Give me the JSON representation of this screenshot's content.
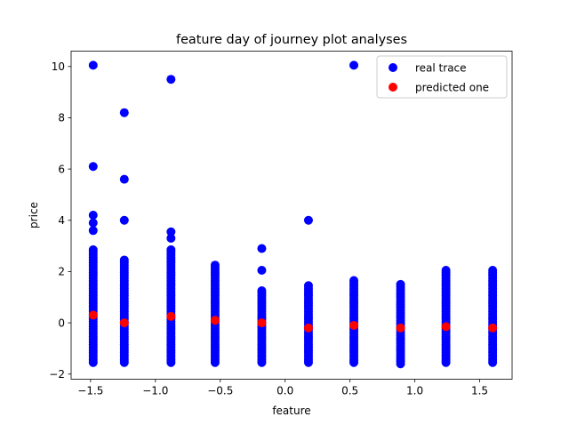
{
  "chart_data": {
    "type": "scatter",
    "title": "feature day of journey plot analyses",
    "xlabel": "feature",
    "ylabel": "price",
    "xlim": [
      -1.65,
      1.75
    ],
    "ylim": [
      -2.2,
      10.6
    ],
    "xticks": [
      -1.5,
      -1.0,
      -0.5,
      0.0,
      0.5,
      1.0,
      1.5
    ],
    "xtick_labels": [
      "−1.5",
      "−1.0",
      "−0.5",
      "0.0",
      "0.5",
      "1.0",
      "1.5"
    ],
    "yticks": [
      -2,
      0,
      2,
      4,
      6,
      8,
      10
    ],
    "ytick_labels": [
      "−2",
      "0",
      "2",
      "4",
      "6",
      "8",
      "10"
    ],
    "grid": false,
    "legend": {
      "placement": "upper right",
      "entries": [
        {
          "name": "real trace",
          "color": "#0000ff"
        },
        {
          "name": "predicted one",
          "color": "#ff0000"
        }
      ]
    },
    "series": [
      {
        "name": "real trace",
        "color": "#0000ff",
        "columns": [
          {
            "x": -1.48,
            "y_min": -1.55,
            "y_max": 2.9,
            "outliers": [
              3.6,
              3.9,
              4.2,
              6.1,
              10.05
            ]
          },
          {
            "x": -1.24,
            "y_min": -1.55,
            "y_max": 2.5,
            "outliers": [
              4.0,
              5.6,
              8.2
            ]
          },
          {
            "x": -0.88,
            "y_min": -1.55,
            "y_max": 2.9,
            "outliers": [
              3.3,
              3.55,
              9.5
            ]
          },
          {
            "x": -0.54,
            "y_min": -1.55,
            "y_max": 2.3,
            "outliers": []
          },
          {
            "x": -0.18,
            "y_min": -1.55,
            "y_max": 1.3,
            "outliers": [
              2.05,
              2.9
            ]
          },
          {
            "x": 0.18,
            "y_min": -1.55,
            "y_max": 1.5,
            "outliers": [
              4.0
            ]
          },
          {
            "x": 0.53,
            "y_min": -1.55,
            "y_max": 1.65,
            "outliers": [
              10.05
            ]
          },
          {
            "x": 0.89,
            "y_min": -1.6,
            "y_max": 1.55,
            "outliers": []
          },
          {
            "x": 1.24,
            "y_min": -1.55,
            "y_max": 2.05,
            "outliers": []
          },
          {
            "x": 1.6,
            "y_min": -1.55,
            "y_max": 2.05,
            "outliers": []
          }
        ]
      },
      {
        "name": "predicted one",
        "color": "#ff0000",
        "points": [
          {
            "x": -1.48,
            "y": 0.3
          },
          {
            "x": -1.24,
            "y": 0.0
          },
          {
            "x": -0.88,
            "y": 0.25
          },
          {
            "x": -0.54,
            "y": 0.1
          },
          {
            "x": -0.18,
            "y": 0.0
          },
          {
            "x": 0.18,
            "y": -0.2
          },
          {
            "x": 0.53,
            "y": -0.1
          },
          {
            "x": 0.89,
            "y": -0.2
          },
          {
            "x": 1.24,
            "y": -0.15
          },
          {
            "x": 1.6,
            "y": -0.2
          }
        ]
      }
    ]
  }
}
